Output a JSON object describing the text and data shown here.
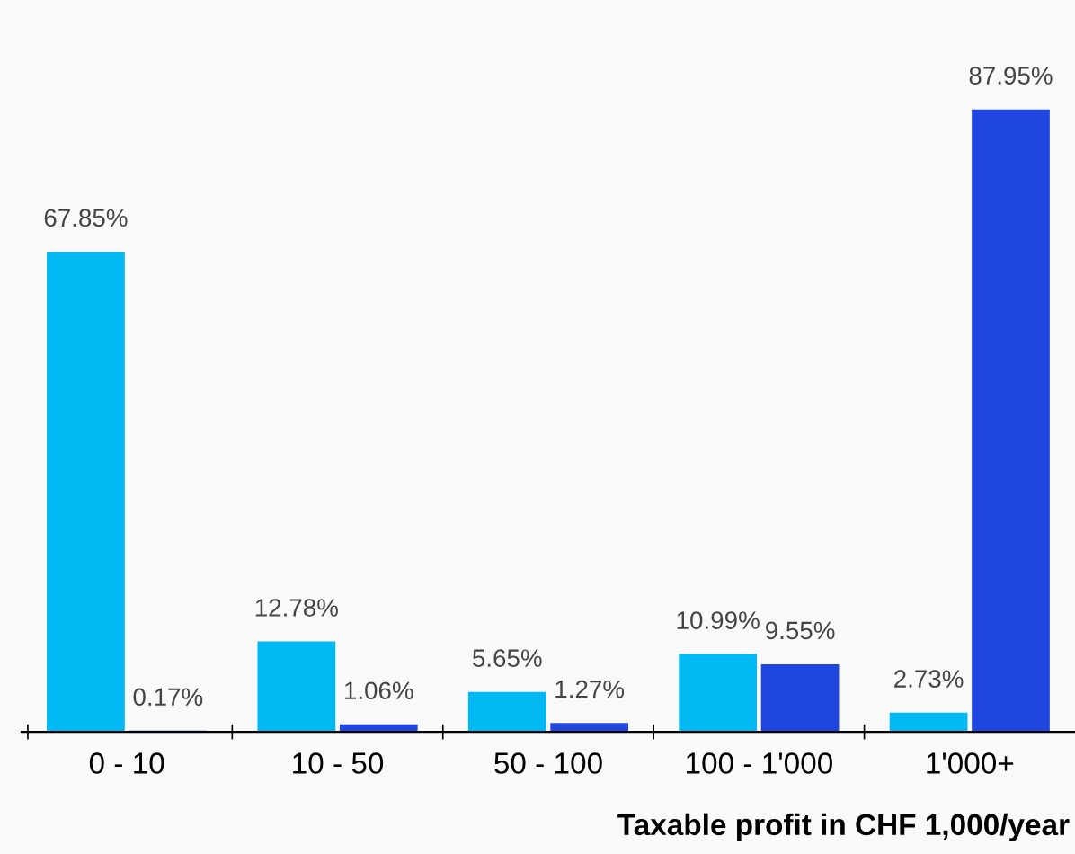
{
  "chart_data": {
    "type": "bar",
    "xlabel": "Taxable profit in CHF 1,000/year",
    "categories": [
      "0 - 10",
      "10 - 50",
      "50 - 100",
      "100 - 1'000",
      "1'000+"
    ],
    "series": [
      {
        "color": "#00b8f2",
        "values": [
          67.85,
          12.78,
          5.65,
          10.99,
          2.73
        ],
        "value_labels": [
          "67.85%",
          "12.78%",
          "5.65%",
          "10.99%",
          "2.73%"
        ]
      },
      {
        "color": "#1f47e0",
        "values": [
          0.17,
          1.06,
          1.27,
          9.55,
          87.95
        ],
        "value_labels": [
          "0.17%",
          "1.06%",
          "1.27%",
          "9.55%",
          "87.95%"
        ]
      }
    ],
    "grid": false,
    "legend": false
  }
}
